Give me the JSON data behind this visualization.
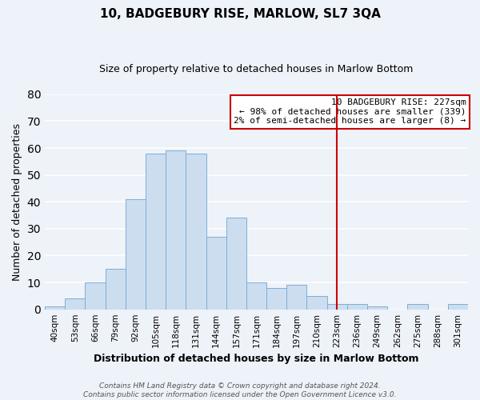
{
  "title": "10, BADGEBURY RISE, MARLOW, SL7 3QA",
  "subtitle": "Size of property relative to detached houses in Marlow Bottom",
  "xlabel": "Distribution of detached houses by size in Marlow Bottom",
  "ylabel": "Number of detached properties",
  "bins": [
    "40sqm",
    "53sqm",
    "66sqm",
    "79sqm",
    "92sqm",
    "105sqm",
    "118sqm",
    "131sqm",
    "144sqm",
    "157sqm",
    "171sqm",
    "184sqm",
    "197sqm",
    "210sqm",
    "223sqm",
    "236sqm",
    "249sqm",
    "262sqm",
    "275sqm",
    "288sqm",
    "301sqm"
  ],
  "heights": [
    1,
    4,
    10,
    15,
    41,
    58,
    59,
    58,
    27,
    34,
    10,
    8,
    9,
    5,
    2,
    2,
    1,
    0,
    2,
    0,
    2
  ],
  "bar_color": "#ccddf0",
  "bar_edge_color": "#7bafd4",
  "vline_x_index": 14,
  "vline_color": "#cc0000",
  "annotation_line1": "10 BADGEBURY RISE: 227sqm",
  "annotation_line2": "← 98% of detached houses are smaller (339)",
  "annotation_line3": "2% of semi-detached houses are larger (8) →",
  "annotation_box_facecolor": "white",
  "annotation_box_edgecolor": "#cc0000",
  "ylim": [
    0,
    80
  ],
  "yticks": [
    0,
    10,
    20,
    30,
    40,
    50,
    60,
    70,
    80
  ],
  "footer_line1": "Contains HM Land Registry data © Crown copyright and database right 2024.",
  "footer_line2": "Contains public sector information licensed under the Open Government Licence v3.0.",
  "background_color": "#eef2f9",
  "grid_color": "white",
  "title_fontsize": 11,
  "subtitle_fontsize": 9,
  "axis_label_fontsize": 9,
  "tick_fontsize": 7.5,
  "footer_fontsize": 6.5,
  "annotation_fontsize": 8
}
